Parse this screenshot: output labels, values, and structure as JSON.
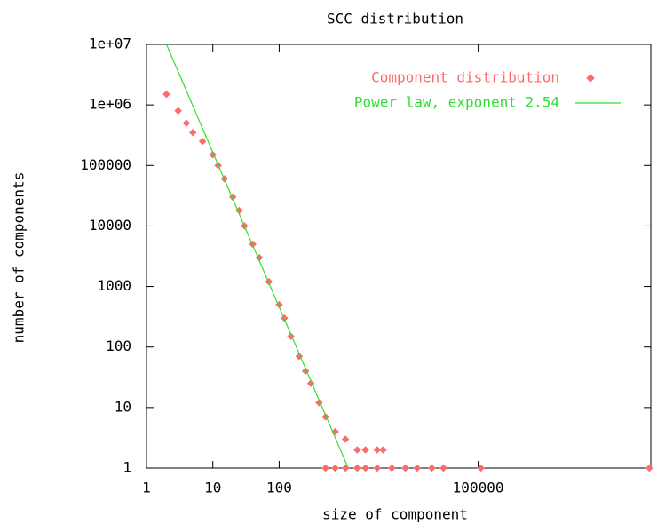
{
  "chart_data": {
    "type": "scatter",
    "title": "SCC distribution",
    "xlabel": "size of component",
    "ylabel": "number of components",
    "xlog": true,
    "ylog": true,
    "grid": false,
    "legend": "top-right",
    "xlim": [
      1,
      40000000
    ],
    "ylim": [
      1,
      10000000
    ],
    "xticks": [
      1,
      10,
      100,
      100000
    ],
    "yticks": [
      1,
      10,
      100,
      1000,
      10000,
      100000,
      {
        "value": 1000000,
        "label": "1e+06"
      },
      {
        "value": 10000000,
        "label": "1e+07"
      }
    ],
    "series": [
      {
        "name": "Component distribution",
        "type": "scatter",
        "color": "#ff6a6a",
        "x": [
          2,
          3,
          4,
          5,
          7,
          10,
          12,
          15,
          20,
          25,
          30,
          40,
          50,
          70,
          100,
          120,
          150,
          200,
          250,
          300,
          400,
          500,
          700,
          1000,
          1500,
          2000,
          3000,
          3700,
          500,
          700,
          1000,
          1500,
          2000,
          3000,
          5000,
          8000,
          12000,
          20000,
          30000,
          110000,
          38000000
        ],
        "values": [
          1500000,
          800000,
          500000,
          350000,
          250000,
          150000,
          100000,
          60000,
          30000,
          18000,
          10000,
          5000,
          3000,
          1200,
          500,
          300,
          150,
          70,
          40,
          25,
          12,
          7,
          4,
          3,
          2,
          2,
          2,
          2,
          1,
          1,
          1,
          1,
          1,
          1,
          1,
          1,
          1,
          1,
          1,
          1,
          1
        ]
      },
      {
        "name": "Power law, exponent 2.54",
        "type": "line",
        "color": "#33dd33",
        "x": [
          2,
          1100
        ],
        "values": [
          10000000,
          1
        ]
      }
    ]
  }
}
